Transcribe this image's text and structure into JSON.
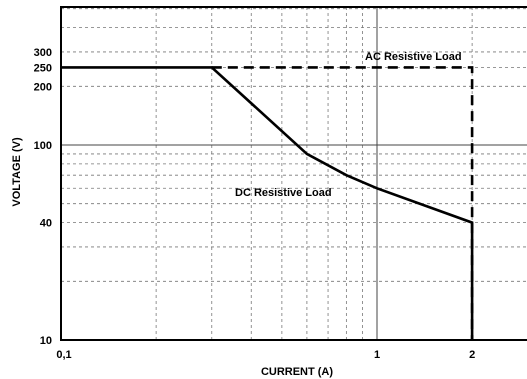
{
  "chart_data": {
    "type": "line",
    "xlabel": "CURRENT (A)",
    "ylabel": "VOLTAGE (V)",
    "x_scale": "log",
    "y_scale": "log",
    "xlim": [
      0.1,
      3
    ],
    "ylim": [
      10,
      500
    ],
    "grid": true,
    "x_ticks": [
      {
        "value": 0.1,
        "label": "0,1"
      },
      {
        "value": 1,
        "label": "1"
      },
      {
        "value": 2,
        "label": "2"
      }
    ],
    "y_ticks": [
      {
        "value": 10,
        "label": "10"
      },
      {
        "value": 40,
        "label": "40"
      },
      {
        "value": 100,
        "label": "100"
      },
      {
        "value": 200,
        "label": "200"
      },
      {
        "value": 250,
        "label": "250"
      },
      {
        "value": 300,
        "label": "300"
      }
    ],
    "series": [
      {
        "name": "AC Resistive Load",
        "style": "dashed",
        "x": [
          0.3,
          2,
          2
        ],
        "y": [
          250,
          250,
          10
        ]
      },
      {
        "name": "DC Resistive Load",
        "style": "solid",
        "x": [
          0.1,
          0.3,
          0.6,
          0.8,
          1,
          2,
          2
        ],
        "y": [
          250,
          250,
          90,
          70,
          60,
          40,
          10
        ]
      }
    ],
    "annotations": [
      {
        "text": "AC Resistive Load"
      },
      {
        "text": "DC Resistive Load"
      }
    ]
  }
}
